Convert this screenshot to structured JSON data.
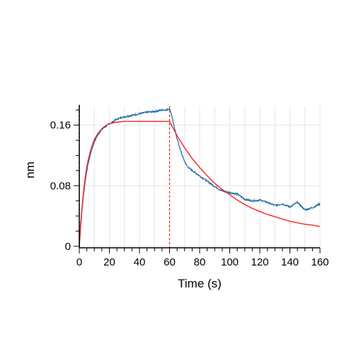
{
  "chart_data": {
    "type": "line",
    "title": "",
    "xlabel": "Time (s)",
    "ylabel": "nm",
    "xlim": [
      0,
      160
    ],
    "ylim": [
      -0.002,
      0.185
    ],
    "xticks": [
      0,
      20,
      40,
      60,
      80,
      100,
      120,
      140,
      160
    ],
    "xtick_labels": [
      "0",
      "20",
      "40",
      "60",
      "80",
      "100",
      "120",
      "140",
      "160"
    ],
    "yticks": [
      0,
      0.08,
      0.16
    ],
    "ytick_labels": [
      "0",
      "0.08",
      "0.16"
    ],
    "grid": true,
    "legend": "none",
    "colors": {
      "measured": "#1f6aa5",
      "fit": "#ff2020",
      "grid": "#e6e6e6",
      "marker": "#ff2020"
    },
    "vertical_markers": [
      0,
      60
    ],
    "series": [
      {
        "style": "noisy-line",
        "color": "#1f6aa5",
        "x": [
          0,
          1,
          2,
          3,
          4,
          5,
          6,
          8,
          10,
          12,
          14,
          16,
          18,
          20,
          22,
          25,
          28,
          30,
          35,
          40,
          45,
          50,
          55,
          58,
          60,
          61,
          62,
          63,
          65,
          68,
          70,
          72,
          75,
          80,
          85,
          90,
          95,
          100,
          105,
          110,
          115,
          120,
          125,
          130,
          135,
          140,
          145,
          150,
          155,
          160
        ],
        "y": [
          0.0,
          0.028,
          0.052,
          0.071,
          0.087,
          0.1,
          0.11,
          0.126,
          0.138,
          0.146,
          0.152,
          0.156,
          0.159,
          0.162,
          0.164,
          0.168,
          0.17,
          0.171,
          0.173,
          0.175,
          0.177,
          0.178,
          0.18,
          0.18,
          0.182,
          0.176,
          0.168,
          0.158,
          0.142,
          0.122,
          0.112,
          0.105,
          0.1,
          0.093,
          0.086,
          0.079,
          0.073,
          0.071,
          0.069,
          0.062,
          0.06,
          0.061,
          0.058,
          0.054,
          0.056,
          0.052,
          0.058,
          0.048,
          0.051,
          0.056
        ]
      },
      {
        "style": "fit-line",
        "color": "#ff2020",
        "x": [
          0,
          1,
          2,
          3,
          4,
          5,
          6,
          8,
          10,
          12,
          14,
          16,
          18,
          20,
          25,
          30,
          40,
          50,
          60,
          65,
          70,
          75,
          80,
          85,
          90,
          95,
          100,
          105,
          110,
          115,
          120,
          125,
          130,
          135,
          140,
          145,
          150,
          155,
          160
        ],
        "y": [
          0.0,
          0.031,
          0.056,
          0.076,
          0.092,
          0.105,
          0.115,
          0.13,
          0.141,
          0.148,
          0.153,
          0.157,
          0.16,
          0.162,
          0.164,
          0.165,
          0.165,
          0.165,
          0.165,
          0.146,
          0.13,
          0.116,
          0.104,
          0.093,
          0.083,
          0.075,
          0.068,
          0.061,
          0.055,
          0.05,
          0.046,
          0.042,
          0.039,
          0.036,
          0.033,
          0.031,
          0.029,
          0.028,
          0.026
        ]
      }
    ]
  }
}
